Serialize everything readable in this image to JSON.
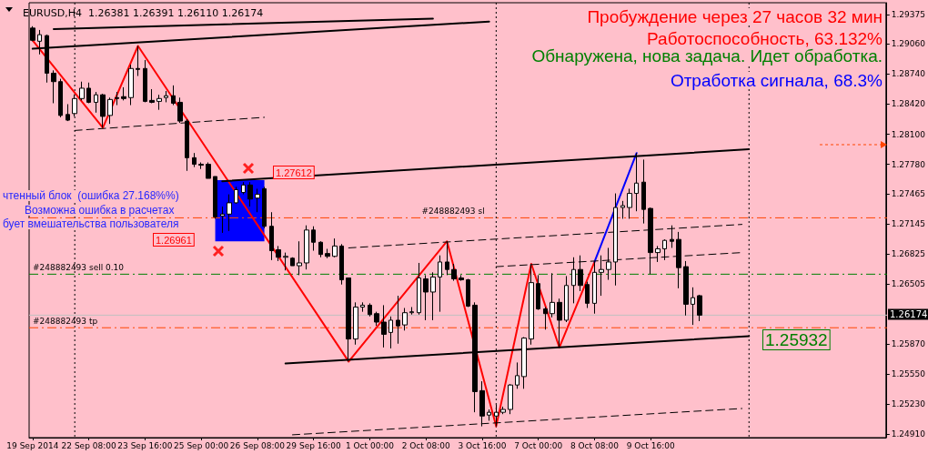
{
  "chart_data": {
    "type": "candlestick",
    "title": "EURUSD,H4  1.26381 1.26391 1.26110 1.26174",
    "categories": [
      "19 Sep 2014",
      null,
      null,
      null,
      null,
      null,
      null,
      null,
      "22 Sep 08:00",
      null,
      null,
      null,
      null,
      null,
      null,
      null,
      "23 Sep 16:00",
      null,
      null,
      null,
      null,
      null,
      null,
      null,
      "25 Sep 00:00",
      null,
      null,
      null,
      null,
      null,
      null,
      null,
      "26 Sep 08:00",
      null,
      null,
      null,
      null,
      null,
      null,
      null,
      "29 Sep 16:00",
      null,
      null,
      null,
      null,
      null,
      null,
      null,
      "1 Oct 00:00",
      null,
      null,
      null,
      null,
      null,
      null,
      null,
      "2 Oct 08:00",
      null,
      null,
      null,
      null,
      null,
      null,
      null,
      "3 Oct 16:00",
      null,
      null,
      null,
      null,
      null,
      null,
      null,
      "7 Oct 00:00",
      null,
      null,
      null,
      null,
      null,
      null,
      null,
      "8 Oct 08:00",
      null,
      null,
      null,
      null,
      null,
      null,
      null,
      "9 Oct 16:00",
      null,
      null,
      null,
      null,
      null,
      null,
      null,
      null,
      null,
      null,
      null,
      null,
      null,
      null,
      null,
      null,
      null,
      null,
      null,
      null,
      null,
      null,
      null,
      null,
      null,
      null,
      null,
      null,
      null,
      null,
      null,
      null,
      null
    ],
    "ohlc": [
      [
        1.2923,
        1.2925,
        1.2909,
        1.291
      ],
      [
        1.2909,
        1.2921,
        1.2895,
        1.2916
      ],
      [
        1.2915,
        1.2916,
        1.2865,
        1.2875
      ],
      [
        1.2875,
        1.2878,
        1.2843,
        1.2866
      ],
      [
        1.2866,
        1.2869,
        1.2828,
        1.283
      ],
      [
        1.2831,
        1.2842,
        1.2824,
        1.2825
      ],
      [
        1.2832,
        1.2852,
        1.2829,
        1.2848
      ],
      [
        1.2848,
        1.2866,
        1.2846,
        1.2859
      ],
      [
        1.2859,
        1.2865,
        1.2843,
        1.2844
      ],
      [
        1.2844,
        1.2855,
        1.2833,
        1.2852
      ],
      [
        1.2852,
        1.2853,
        1.2817,
        1.2829
      ],
      [
        1.283,
        1.2849,
        1.2821,
        1.2847
      ],
      [
        1.2849,
        1.2855,
        1.2841,
        1.2848
      ],
      [
        1.285,
        1.286,
        1.2846,
        1.2848
      ],
      [
        1.2849,
        1.2884,
        1.2841,
        1.288
      ],
      [
        1.288,
        1.2904,
        1.2872,
        1.2879
      ],
      [
        1.288,
        1.2889,
        1.2844,
        1.2845
      ],
      [
        1.2846,
        1.2858,
        1.2843,
        1.2844
      ],
      [
        1.2845,
        1.2852,
        1.2836,
        1.2848
      ],
      [
        1.2849,
        1.2856,
        1.2844,
        1.2851
      ],
      [
        1.2851,
        1.2862,
        1.2841,
        1.2843
      ],
      [
        1.2844,
        1.2849,
        1.2822,
        1.2824
      ],
      [
        1.2824,
        1.2826,
        1.2771,
        1.2785
      ],
      [
        1.2785,
        1.279,
        1.2775,
        1.2778
      ],
      [
        1.2778,
        1.278,
        1.2773,
        1.2777
      ],
      [
        1.2778,
        1.278,
        1.2763,
        1.2763
      ],
      [
        1.2765,
        1.2765,
        1.272,
        1.2722
      ],
      [
        1.2723,
        1.2733,
        1.2705,
        1.2725
      ],
      [
        1.2725,
        1.2746,
        1.2707,
        1.2737
      ],
      [
        1.2737,
        1.2754,
        1.2736,
        1.2751
      ],
      [
        1.2748,
        1.2759,
        1.2746,
        1.2756
      ],
      [
        1.2756,
        1.2759,
        1.2733,
        1.2741
      ],
      [
        1.2742,
        1.2752,
        1.2727,
        1.2746
      ],
      [
        1.2752,
        1.2754,
        1.271,
        1.2712
      ],
      [
        1.2712,
        1.2727,
        1.2676,
        1.2686
      ],
      [
        1.2687,
        1.2691,
        1.2675,
        1.2679
      ],
      [
        1.2679,
        1.2684,
        1.2665,
        1.268
      ],
      [
        1.2678,
        1.2679,
        1.267,
        1.267
      ],
      [
        1.267,
        1.2696,
        1.266,
        1.2673
      ],
      [
        1.2673,
        1.2713,
        1.2666,
        1.2708
      ],
      [
        1.2708,
        1.2712,
        1.2686,
        1.2695
      ],
      [
        1.2695,
        1.2696,
        1.2679,
        1.2682
      ],
      [
        1.2683,
        1.2688,
        1.2678,
        1.268
      ],
      [
        1.268,
        1.2699,
        1.2679,
        1.2691
      ],
      [
        1.2691,
        1.2693,
        1.265,
        1.2655
      ],
      [
        1.2657,
        1.2657,
        1.2568,
        1.2592
      ],
      [
        1.2592,
        1.2631,
        1.2586,
        1.2626
      ],
      [
        1.2626,
        1.2631,
        1.2621,
        1.2628
      ],
      [
        1.2628,
        1.263,
        1.2616,
        1.2618
      ],
      [
        1.2619,
        1.2621,
        1.2606,
        1.261
      ],
      [
        1.261,
        1.2628,
        1.2583,
        1.2597
      ],
      [
        1.2599,
        1.2616,
        1.2582,
        1.2612
      ],
      [
        1.2612,
        1.2638,
        1.2587,
        1.2606
      ],
      [
        1.2607,
        1.2625,
        1.2601,
        1.262
      ],
      [
        1.262,
        1.2626,
        1.2618,
        1.2621
      ],
      [
        1.262,
        1.2673,
        1.2618,
        1.2657
      ],
      [
        1.2656,
        1.266,
        1.2612,
        1.2642
      ],
      [
        1.2642,
        1.2663,
        1.2612,
        1.2658
      ],
      [
        1.2658,
        1.2681,
        1.2621,
        1.2674
      ],
      [
        1.2674,
        1.2696,
        1.266,
        1.2666
      ],
      [
        1.2666,
        1.2672,
        1.2654,
        1.2656
      ],
      [
        1.2657,
        1.266,
        1.2654,
        1.2655
      ],
      [
        1.2655,
        1.2656,
        1.2626,
        1.2627
      ],
      [
        1.2628,
        1.2631,
        1.2514,
        1.2536
      ],
      [
        1.2537,
        1.2547,
        1.2499,
        1.251
      ],
      [
        1.2511,
        1.2517,
        1.2505,
        1.2514
      ],
      [
        1.251,
        1.2522,
        1.2499,
        1.2514
      ],
      [
        1.2514,
        1.252,
        1.2512,
        1.2517
      ],
      [
        1.2517,
        1.2544,
        1.2512,
        1.2543
      ],
      [
        1.2543,
        1.2567,
        1.2539,
        1.2553
      ],
      [
        1.2552,
        1.2594,
        1.2539,
        1.2593
      ],
      [
        1.2592,
        1.2672,
        1.2586,
        1.2652
      ],
      [
        1.2651,
        1.266,
        1.2623,
        1.2624
      ],
      [
        1.2624,
        1.2626,
        1.2602,
        1.2619
      ],
      [
        1.2619,
        1.2662,
        1.2615,
        1.2631
      ],
      [
        1.2631,
        1.2635,
        1.2583,
        1.2612
      ],
      [
        1.2612,
        1.2659,
        1.261,
        1.2649
      ],
      [
        1.2649,
        1.2679,
        1.263,
        1.2666
      ],
      [
        1.2666,
        1.2681,
        1.2643,
        1.2649
      ],
      [
        1.265,
        1.2653,
        1.2625,
        1.263
      ],
      [
        1.263,
        1.2675,
        1.2619,
        1.2663
      ],
      [
        1.2663,
        1.2681,
        1.2638,
        1.2666
      ],
      [
        1.2666,
        1.2689,
        1.2655,
        1.2674
      ],
      [
        1.2674,
        1.2747,
        1.2649,
        1.2732
      ],
      [
        1.2732,
        1.2739,
        1.272,
        1.2734
      ],
      [
        1.2732,
        1.2752,
        1.272,
        1.2747
      ],
      [
        1.2747,
        1.279,
        1.2728,
        1.2758
      ],
      [
        1.2759,
        1.2783,
        1.2715,
        1.273
      ],
      [
        1.2731,
        1.2732,
        1.2661,
        1.2684
      ],
      [
        1.2684,
        1.2691,
        1.2674,
        1.2688
      ],
      [
        1.2688,
        1.2698,
        1.2676,
        1.2697
      ],
      [
        1.2698,
        1.2713,
        1.2689,
        1.2696
      ],
      [
        1.2698,
        1.2706,
        1.2646,
        1.2668
      ],
      [
        1.2669,
        1.2675,
        1.2617,
        1.2629
      ],
      [
        1.2629,
        1.2647,
        1.2607,
        1.2636
      ],
      [
        1.26381,
        1.26391,
        1.2611,
        1.26174
      ],
      null,
      null,
      null,
      null,
      null,
      null,
      null,
      null,
      null,
      null,
      null,
      null,
      null,
      null,
      null,
      null,
      null,
      null,
      null,
      null,
      null,
      null,
      null,
      null,
      null,
      null
    ],
    "series": [
      {
        "type": "line",
        "color": "#ff0000",
        "line_style": "solid",
        "values": [
          1.291,
          null,
          null,
          null,
          null,
          null,
          null,
          null,
          null,
          null,
          1.2817,
          null,
          null,
          null,
          null,
          1.2904,
          null,
          null,
          null,
          null,
          null,
          null,
          null,
          null,
          null,
          null,
          null,
          null,
          null,
          null,
          null,
          null,
          null,
          null,
          null,
          null,
          null,
          null,
          null,
          null,
          null,
          null,
          null,
          null,
          null,
          1.2568,
          null,
          null,
          null,
          null,
          null,
          null,
          null,
          null,
          null,
          null,
          null,
          null,
          null,
          1.2696,
          null,
          null,
          null,
          null,
          null,
          null,
          1.2499,
          null,
          null,
          null,
          null,
          1.2672,
          null,
          null,
          null,
          1.2583,
          null,
          null,
          null,
          null,
          1.2674,
          null,
          null,
          null,
          null,
          null,
          null,
          null,
          null,
          null,
          null,
          null,
          null,
          null,
          null,
          null,
          null,
          null,
          null,
          null,
          null,
          null,
          null,
          null,
          null,
          null,
          null,
          null,
          null,
          null,
          null,
          null,
          null,
          null,
          null,
          null,
          null,
          null,
          null,
          null,
          null,
          null
        ]
      },
      {
        "type": "line",
        "color": "#0000ff",
        "line_style": "solid",
        "values": [
          null,
          null,
          null,
          null,
          null,
          null,
          null,
          null,
          null,
          null,
          null,
          null,
          null,
          null,
          null,
          null,
          null,
          null,
          null,
          null,
          null,
          null,
          null,
          null,
          null,
          null,
          null,
          null,
          null,
          null,
          null,
          null,
          null,
          null,
          null,
          null,
          null,
          null,
          null,
          null,
          null,
          null,
          null,
          null,
          null,
          null,
          null,
          null,
          null,
          null,
          null,
          null,
          null,
          null,
          null,
          null,
          null,
          null,
          null,
          null,
          null,
          null,
          null,
          null,
          null,
          null,
          null,
          null,
          null,
          null,
          null,
          null,
          null,
          null,
          null,
          null,
          null,
          null,
          null,
          null,
          1.2674,
          null,
          null,
          null,
          null,
          null,
          1.279,
          null,
          null,
          null,
          null,
          null,
          null,
          null,
          null,
          null,
          null,
          null,
          null,
          null,
          null,
          null,
          null,
          null,
          null,
          null,
          null,
          null,
          null,
          null,
          null,
          null,
          null,
          null,
          null,
          null,
          null,
          null,
          null,
          null,
          null,
          null
        ]
      },
      {
        "type": "line",
        "color": "#000000",
        "line_style": "solid",
        "values": [
          null,
          null,
          null,
          1.2922,
          null,
          null,
          null,
          null,
          null,
          null,
          null,
          null,
          null,
          null,
          null,
          null,
          null,
          null,
          null,
          null,
          null,
          null,
          null,
          null,
          null,
          null,
          null,
          null,
          null,
          null,
          null,
          null,
          null,
          null,
          null,
          null,
          null,
          null,
          null,
          null,
          null,
          null,
          null,
          null,
          null,
          null,
          null,
          null,
          null,
          null,
          null,
          null,
          null,
          null,
          null,
          null,
          null,
          1.2933,
          null,
          null,
          null,
          null,
          null,
          null,
          null,
          null,
          null,
          null,
          null,
          null,
          null,
          null,
          null,
          null,
          null,
          null,
          null,
          null,
          null,
          null,
          null,
          null,
          null,
          null,
          null,
          null,
          null,
          null,
          null,
          null,
          null,
          null,
          null,
          null,
          null,
          null,
          null,
          null,
          null,
          null,
          null,
          null,
          null,
          null,
          null,
          null,
          null,
          null,
          null,
          null,
          null,
          null,
          null,
          null,
          null,
          null,
          null,
          null,
          null,
          null,
          null,
          null
        ]
      },
      {
        "type": "line",
        "color": "#000000",
        "line_style": "solid",
        "values": [
          1.2901,
          null,
          null,
          null,
          null,
          null,
          null,
          null,
          null,
          null,
          null,
          null,
          null,
          null,
          null,
          null,
          null,
          null,
          null,
          null,
          null,
          null,
          null,
          null,
          null,
          null,
          null,
          null,
          null,
          null,
          null,
          null,
          null,
          null,
          null,
          null,
          null,
          null,
          null,
          null,
          null,
          null,
          null,
          null,
          null,
          null,
          null,
          null,
          null,
          null,
          null,
          null,
          null,
          null,
          null,
          null,
          null,
          null,
          null,
          null,
          null,
          null,
          null,
          null,
          null,
          1.293,
          null,
          null,
          null,
          null,
          null,
          null,
          null,
          null,
          null,
          null,
          null,
          null,
          null,
          null,
          null,
          null,
          null,
          null,
          null,
          null,
          null,
          null,
          null,
          null,
          null,
          null,
          null,
          null,
          null,
          null,
          null,
          null,
          null,
          null,
          null,
          null,
          null,
          null,
          null,
          null,
          null,
          null,
          null,
          null,
          null,
          null,
          null,
          null,
          null,
          null,
          null,
          null,
          null,
          null,
          null,
          null
        ]
      },
      {
        "type": "line",
        "color": "#000000",
        "line_style": "solid",
        "values": [
          null,
          null,
          null,
          null,
          null,
          null,
          null,
          null,
          null,
          null,
          null,
          null,
          null,
          null,
          null,
          null,
          null,
          null,
          null,
          null,
          null,
          null,
          null,
          null,
          null,
          null,
          null,
          1.276,
          null,
          null,
          null,
          null,
          null,
          null,
          null,
          null,
          null,
          null,
          null,
          null,
          null,
          null,
          null,
          null,
          null,
          null,
          null,
          null,
          null,
          null,
          null,
          null,
          null,
          null,
          null,
          null,
          null,
          null,
          null,
          null,
          null,
          null,
          null,
          null,
          null,
          null,
          null,
          null,
          null,
          null,
          null,
          null,
          null,
          null,
          null,
          null,
          null,
          null,
          null,
          null,
          null,
          null,
          null,
          null,
          null,
          null,
          null,
          null,
          null,
          null,
          null,
          null,
          null,
          null,
          null,
          null,
          null,
          null,
          null,
          null,
          null,
          null,
          1.2794,
          null,
          null,
          null,
          null,
          null,
          null,
          null,
          null,
          null,
          null,
          null,
          null,
          null,
          null,
          null,
          null,
          null,
          null,
          null
        ]
      },
      {
        "type": "line",
        "color": "#000000",
        "line_style": "solid",
        "values": [
          null,
          null,
          null,
          null,
          null,
          null,
          null,
          null,
          null,
          null,
          null,
          null,
          null,
          null,
          null,
          null,
          null,
          null,
          null,
          null,
          null,
          null,
          null,
          null,
          null,
          null,
          null,
          null,
          null,
          null,
          null,
          null,
          null,
          null,
          null,
          null,
          1.2566,
          null,
          null,
          null,
          null,
          null,
          null,
          null,
          null,
          null,
          null,
          null,
          null,
          null,
          null,
          null,
          null,
          null,
          null,
          null,
          null,
          null,
          null,
          null,
          null,
          null,
          null,
          null,
          null,
          null,
          null,
          null,
          null,
          null,
          null,
          null,
          null,
          null,
          null,
          null,
          null,
          null,
          null,
          null,
          null,
          null,
          null,
          null,
          null,
          null,
          null,
          null,
          null,
          null,
          null,
          null,
          null,
          null,
          null,
          null,
          null,
          null,
          null,
          null,
          null,
          null,
          1.2595,
          null,
          null,
          null,
          null,
          null,
          null,
          null,
          null,
          null,
          null,
          null,
          null,
          null,
          null,
          null,
          null,
          null,
          null,
          null
        ]
      },
      {
        "type": "line",
        "color": "#000000",
        "line_style": "dashed",
        "values": [
          null,
          null,
          null,
          null,
          null,
          null,
          1.2814,
          null,
          null,
          null,
          null,
          null,
          null,
          null,
          null,
          null,
          null,
          null,
          null,
          null,
          null,
          null,
          null,
          null,
          null,
          null,
          null,
          null,
          null,
          null,
          null,
          null,
          null,
          1.2828,
          null,
          null,
          null,
          null,
          null,
          null,
          null,
          null,
          null,
          null,
          null,
          null,
          null,
          null,
          null,
          null,
          null,
          null,
          null,
          null,
          null,
          null,
          null,
          null,
          null,
          null,
          null,
          null,
          null,
          null,
          null,
          null,
          null,
          null,
          null,
          null,
          null,
          null,
          null,
          null,
          null,
          null,
          null,
          null,
          null,
          null,
          null,
          null,
          null,
          null,
          null,
          null,
          null,
          null,
          null,
          null,
          null,
          null,
          null,
          null,
          null,
          null,
          null,
          null,
          null,
          null,
          null,
          null,
          null,
          null,
          null,
          null,
          null,
          null,
          null,
          null,
          null,
          null,
          null,
          null,
          null,
          null,
          null,
          null,
          null,
          null,
          null,
          null
        ]
      },
      {
        "type": "line",
        "color": "#000000",
        "line_style": "dashed",
        "values": [
          null,
          null,
          null,
          null,
          null,
          null,
          null,
          null,
          null,
          null,
          null,
          null,
          null,
          null,
          null,
          null,
          null,
          null,
          null,
          null,
          null,
          null,
          null,
          null,
          null,
          null,
          null,
          null,
          null,
          null,
          null,
          null,
          null,
          null,
          null,
          null,
          null,
          null,
          null,
          null,
          null,
          null,
          null,
          null,
          null,
          1.2689,
          null,
          null,
          null,
          null,
          null,
          null,
          null,
          null,
          null,
          null,
          null,
          null,
          null,
          null,
          null,
          null,
          null,
          null,
          null,
          null,
          null,
          null,
          null,
          null,
          null,
          null,
          null,
          null,
          null,
          null,
          null,
          null,
          null,
          null,
          null,
          null,
          null,
          null,
          null,
          null,
          null,
          null,
          null,
          null,
          null,
          null,
          null,
          null,
          null,
          null,
          null,
          null,
          null,
          null,
          null,
          1.2714,
          null,
          null,
          null,
          null,
          null,
          null,
          null,
          null,
          null,
          null,
          null,
          null,
          null,
          null,
          null,
          null,
          null,
          null,
          null,
          null
        ]
      },
      {
        "type": "line",
        "color": "#000000",
        "line_style": "dashed",
        "values": [
          null,
          null,
          null,
          null,
          null,
          null,
          null,
          null,
          null,
          null,
          null,
          null,
          null,
          null,
          null,
          null,
          null,
          null,
          null,
          null,
          null,
          null,
          null,
          null,
          null,
          null,
          null,
          null,
          null,
          null,
          null,
          null,
          null,
          null,
          null,
          null,
          null,
          null,
          null,
          null,
          null,
          null,
          null,
          null,
          null,
          null,
          null,
          null,
          null,
          null,
          null,
          null,
          null,
          null,
          null,
          null,
          null,
          null,
          null,
          null,
          null,
          null,
          null,
          null,
          null,
          null,
          1.2669,
          null,
          null,
          null,
          null,
          null,
          null,
          null,
          null,
          null,
          null,
          null,
          null,
          null,
          null,
          null,
          null,
          null,
          null,
          null,
          null,
          null,
          null,
          null,
          null,
          null,
          null,
          null,
          null,
          null,
          null,
          null,
          null,
          null,
          null,
          1.2684,
          null,
          null,
          null,
          null,
          null,
          null,
          null,
          null,
          null,
          null,
          null,
          null,
          null,
          null,
          null,
          null,
          null,
          null,
          null,
          null
        ]
      },
      {
        "type": "line",
        "color": "#000000",
        "line_style": "dashed",
        "values": [
          null,
          null,
          null,
          null,
          null,
          null,
          null,
          null,
          null,
          null,
          null,
          null,
          null,
          null,
          null,
          null,
          null,
          null,
          null,
          null,
          null,
          null,
          null,
          null,
          null,
          null,
          null,
          null,
          null,
          null,
          null,
          null,
          null,
          null,
          null,
          null,
          null,
          1.249,
          null,
          null,
          null,
          null,
          null,
          null,
          null,
          null,
          null,
          null,
          null,
          null,
          null,
          null,
          null,
          null,
          null,
          null,
          null,
          null,
          null,
          null,
          null,
          null,
          null,
          null,
          null,
          null,
          null,
          null,
          null,
          null,
          null,
          null,
          null,
          null,
          null,
          null,
          null,
          null,
          null,
          null,
          null,
          null,
          null,
          null,
          null,
          null,
          null,
          null,
          null,
          null,
          null,
          null,
          null,
          null,
          null,
          null,
          null,
          null,
          null,
          null,
          null,
          1.2518,
          null,
          null,
          null,
          null,
          null,
          null,
          null,
          null,
          null,
          null,
          null,
          null,
          null,
          null,
          null,
          null,
          null,
          null,
          null,
          null
        ]
      }
    ],
    "ylim": [
      1.2487,
      1.295
    ],
    "yticks": [
      1.29375,
      {
        "value": 1.2906,
        "label": "1.29060"
      },
      {
        "value": 1.2874,
        "label": "1.28740"
      },
      {
        "value": 1.2842,
        "label": "1.28420"
      },
      {
        "value": 1.281,
        "label": "1.28100"
      },
      {
        "value": 1.2778,
        "label": "1.27780"
      },
      1.27465,
      1.27145,
      1.26825,
      1.26505,
      {
        "value": 1.2587,
        "label": "1.25870"
      },
      {
        "value": 1.2555,
        "label": "1.25550"
      },
      {
        "value": 1.2523,
        "label": "1.25230"
      },
      {
        "value": 1.2491,
        "label": "1.24910"
      }
    ],
    "ref_lines": [
      {
        "axis": "y",
        "value": 1.2721,
        "label": "#248882493 sl",
        "color": "#ff4500",
        "line_style": "dashed"
      },
      {
        "axis": "y",
        "value": 1.2661,
        "label": "#248882493 sell 0.10",
        "color": "#008000",
        "line_style": "dashed"
      },
      {
        "axis": "y",
        "value": 1.26174,
        "label": "1.26174",
        "color": "#c0c0c0",
        "line_style": "solid"
      },
      {
        "axis": "y",
        "value": 1.2604,
        "label": "#248882493 tp",
        "color": "#ff4500",
        "line_style": "dashed"
      }
    ],
    "bands": [
      {
        "axis": "y",
        "from": 1.26961,
        "to": 1.27612,
        "color": "#0000ff"
      }
    ],
    "annotations": [
      "Пробуждение через 27 часов 32 мин",
      "Работоспособность, 63.132%",
      "Обнаружена, нова задача. Идет обработка.",
      "Отработка сигнала, 68.3%",
      "чтенный блок  (ошибка 27.168%%)",
      "Возможна ошибка в расчетах",
      "бует вмешательства пользователя",
      "1.26961",
      "1.27612",
      "1.25932"
    ],
    "marker": "none",
    "grid": false
  }
}
